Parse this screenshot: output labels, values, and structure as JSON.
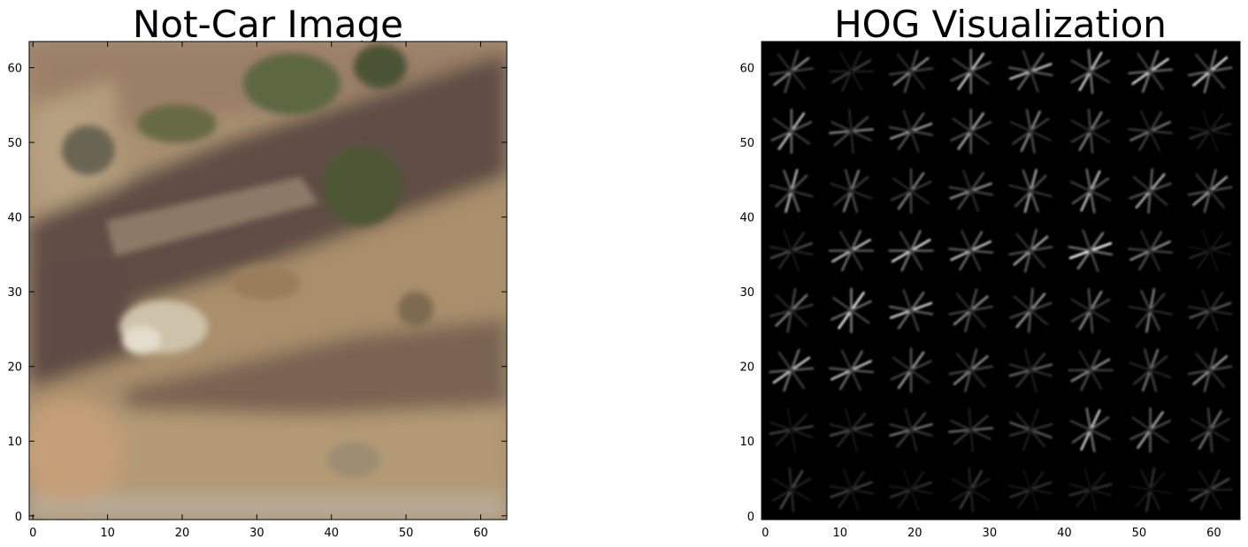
{
  "chart_data": [
    {
      "type": "image",
      "title": "Not-Car Image",
      "xlim": [
        -0.5,
        63.5
      ],
      "ylim": [
        63.5,
        -0.5
      ],
      "xticks": [
        0,
        10,
        20,
        30,
        40,
        50,
        60
      ],
      "yticks": [
        0,
        10,
        20,
        30,
        40,
        50,
        60
      ],
      "grid": false,
      "image_content": "blurred photo of dry brown hillside with green shrubs and dark rocky bands",
      "colors": {
        "sand": "#b59a70",
        "tan": "#a48a66",
        "dark_band": "#5e4d42",
        "shrub_green": "#5d6840",
        "light_rock": "#d8d0be"
      }
    },
    {
      "type": "heatmap",
      "title": "HOG Visualization",
      "colormap": "gray",
      "xlim": [
        -0.5,
        63.5
      ],
      "ylim": [
        63.5,
        -0.5
      ],
      "xticks": [
        0,
        10,
        20,
        30,
        40,
        50,
        60
      ],
      "yticks": [
        0,
        10,
        20,
        30,
        40,
        50,
        60
      ],
      "grid": false,
      "cell_size": 8,
      "cells": [
        [
          [
            0.55,
            38
          ],
          [
            0.25,
            30
          ],
          [
            0.55,
            38
          ],
          [
            0.8,
            55
          ],
          [
            0.75,
            20
          ],
          [
            0.8,
            60
          ],
          [
            0.85,
            35
          ],
          [
            0.85,
            40
          ]
        ],
        [
          [
            0.75,
            55
          ],
          [
            0.5,
            5
          ],
          [
            0.6,
            20
          ],
          [
            0.65,
            55
          ],
          [
            0.55,
            65
          ],
          [
            0.5,
            60
          ],
          [
            0.45,
            25
          ],
          [
            0.2,
            20
          ]
        ],
        [
          [
            0.7,
            75
          ],
          [
            0.5,
            70
          ],
          [
            0.5,
            55
          ],
          [
            0.55,
            20
          ],
          [
            0.65,
            75
          ],
          [
            0.75,
            65
          ],
          [
            0.7,
            50
          ],
          [
            0.65,
            40
          ]
        ],
        [
          [
            0.3,
            20
          ],
          [
            0.75,
            30
          ],
          [
            0.85,
            30
          ],
          [
            0.75,
            25
          ],
          [
            0.65,
            40
          ],
          [
            0.95,
            20
          ],
          [
            0.55,
            25
          ],
          [
            0.15,
            20
          ]
        ],
        [
          [
            0.5,
            45
          ],
          [
            0.9,
            55
          ],
          [
            0.8,
            20
          ],
          [
            0.55,
            40
          ],
          [
            0.6,
            50
          ],
          [
            0.55,
            60
          ],
          [
            0.5,
            80
          ],
          [
            0.35,
            20
          ]
        ],
        [
          [
            0.8,
            35
          ],
          [
            0.75,
            25
          ],
          [
            0.6,
            55
          ],
          [
            0.55,
            40
          ],
          [
            0.4,
            15
          ],
          [
            0.55,
            30
          ],
          [
            0.45,
            70
          ],
          [
            0.6,
            40
          ]
        ],
        [
          [
            0.25,
            10
          ],
          [
            0.3,
            15
          ],
          [
            0.45,
            15
          ],
          [
            0.4,
            5
          ],
          [
            0.35,
            160
          ],
          [
            0.8,
            65
          ],
          [
            0.65,
            55
          ],
          [
            0.45,
            60
          ]
        ],
        [
          [
            0.3,
            60
          ],
          [
            0.25,
            20
          ],
          [
            0.2,
            20
          ],
          [
            0.25,
            60
          ],
          [
            0.2,
            20
          ],
          [
            0.2,
            15
          ],
          [
            0.2,
            80
          ],
          [
            0.3,
            30
          ]
        ]
      ]
    }
  ]
}
